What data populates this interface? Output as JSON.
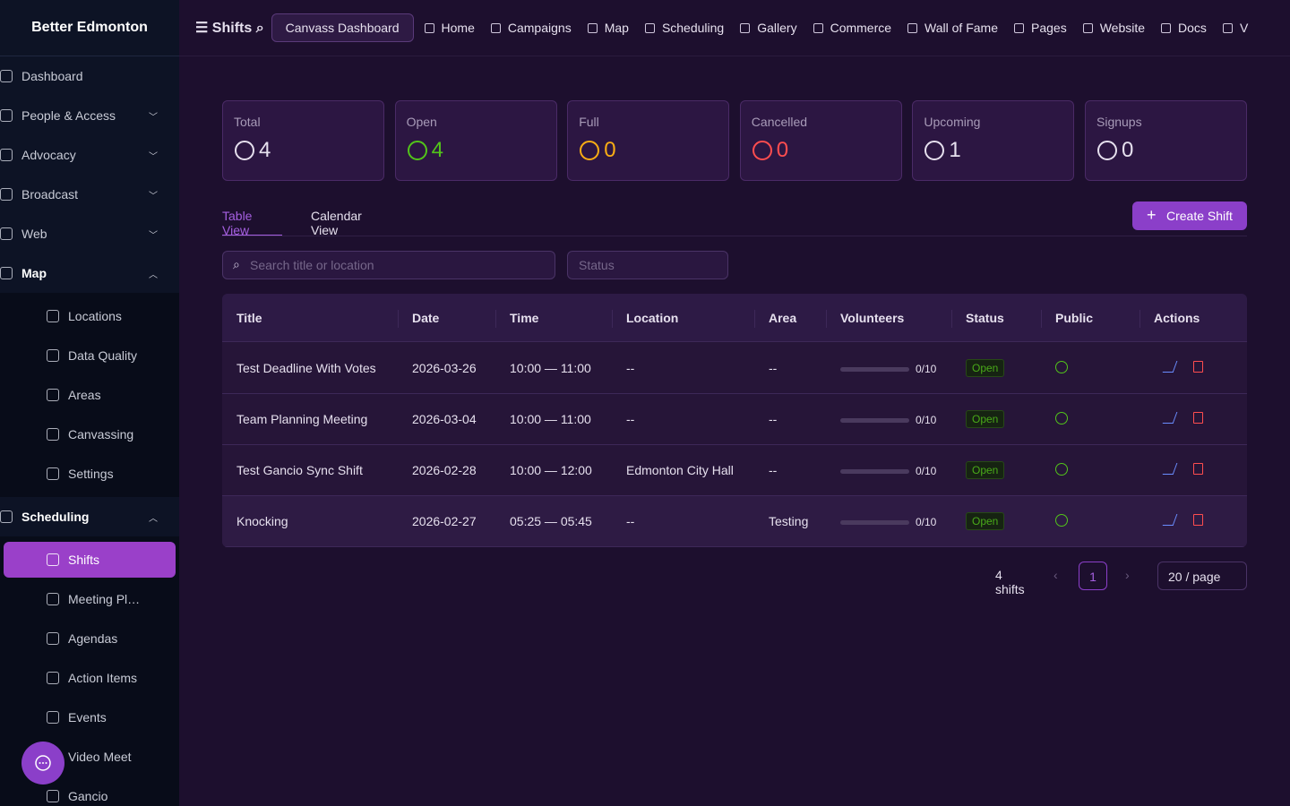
{
  "sidebar": {
    "brand": "Better Edmonton",
    "items": [
      {
        "label": "Dashboard"
      },
      {
        "label": "People & Access",
        "expanded": false
      },
      {
        "label": "Advocacy",
        "expanded": false
      },
      {
        "label": "Broadcast",
        "expanded": false
      },
      {
        "label": "Web",
        "expanded": false
      },
      {
        "label": "Map",
        "expanded": true,
        "children": [
          {
            "label": "Locations"
          },
          {
            "label": "Data Quality"
          },
          {
            "label": "Areas"
          },
          {
            "label": "Canvassing"
          },
          {
            "label": "Settings"
          }
        ]
      },
      {
        "label": "Scheduling",
        "expanded": true,
        "children": [
          {
            "label": "Shifts",
            "active": true
          },
          {
            "label": "Meeting Pl…"
          },
          {
            "label": "Agendas"
          },
          {
            "label": "Action Items"
          },
          {
            "label": "Events"
          },
          {
            "label": "Video Meet"
          },
          {
            "label": "Gancio"
          }
        ]
      }
    ]
  },
  "topbar": {
    "title": "Shifts",
    "button": "Canvass Dashboard",
    "nav": [
      "Home",
      "Campaigns",
      "Map",
      "Scheduling",
      "Gallery",
      "Commerce",
      "Wall of Fame",
      "Pages",
      "Website",
      "Docs",
      "V"
    ]
  },
  "stats": [
    {
      "label": "Total",
      "value": 4,
      "color": "#e6e0ee"
    },
    {
      "label": "Open",
      "value": 4,
      "color": "#52c41a"
    },
    {
      "label": "Full",
      "value": 0,
      "color": "#faad14"
    },
    {
      "label": "Cancelled",
      "value": 0,
      "color": "#ff4d4f"
    },
    {
      "label": "Upcoming",
      "value": 1,
      "color": "#e6e0ee"
    },
    {
      "label": "Signups",
      "value": 0,
      "color": "#e6e0ee"
    }
  ],
  "tabs": [
    "Table View",
    "Calendar View"
  ],
  "create_button": "Create Shift",
  "search_placeholder": "Search title or location",
  "status_placeholder": "Status",
  "table": {
    "headers": [
      "Title",
      "Date",
      "Time",
      "Location",
      "Area",
      "Volunteers",
      "Status",
      "Public",
      "Actions"
    ],
    "rows": [
      [
        "Test Deadline With Votes",
        "2026-03-26",
        "10:00 — 11:00",
        "--",
        "--",
        "0/10",
        "Open"
      ],
      [
        "Team Planning Meeting",
        "2026-03-04",
        "10:00 — 11:00",
        "--",
        "--",
        "0/10",
        "Open"
      ],
      [
        "Test Gancio Sync Shift",
        "2026-02-28",
        "10:00 — 12:00",
        "Edmonton City Hall",
        "--",
        "0/10",
        "Open"
      ],
      [
        "Knocking",
        "2026-02-27",
        "05:25 — 05:45",
        "--",
        "Testing",
        "0/10",
        "Open"
      ]
    ]
  },
  "pagination": {
    "total": "4 shifts",
    "page": "1",
    "page_size": "20 / page"
  }
}
